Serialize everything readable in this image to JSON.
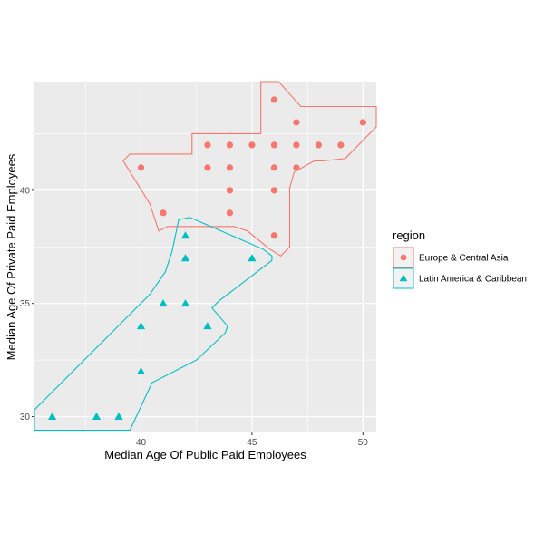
{
  "chart_data": {
    "type": "scatter",
    "xlabel": "Median Age Of Public Paid Employees",
    "ylabel": "Median Age Of Private Paid Employees",
    "xlim": [
      35.2,
      50.6
    ],
    "ylim": [
      29.3,
      44.8
    ],
    "x_ticks": [
      40,
      45,
      50
    ],
    "y_ticks": [
      30,
      35,
      40
    ],
    "grid": true,
    "legend": {
      "title": "region",
      "position": "right"
    },
    "series": [
      {
        "name": "Europe & Central Asia",
        "color": "#F8766D",
        "shape": "circle",
        "points": [
          [
            46,
            44
          ],
          [
            47,
            43
          ],
          [
            50,
            43
          ],
          [
            43,
            42
          ],
          [
            44,
            42
          ],
          [
            45,
            42
          ],
          [
            46,
            42
          ],
          [
            47,
            42
          ],
          [
            48,
            42
          ],
          [
            49,
            42
          ],
          [
            40,
            41
          ],
          [
            43,
            41
          ],
          [
            44,
            41
          ],
          [
            46,
            41
          ],
          [
            47,
            41
          ],
          [
            44,
            40
          ],
          [
            46,
            40
          ],
          [
            41,
            39
          ],
          [
            44,
            39
          ],
          [
            46,
            38
          ]
        ],
        "hull": [
          [
            45.4,
            44.8
          ],
          [
            46.2,
            44.8
          ],
          [
            47.2,
            43.7
          ],
          [
            50.6,
            43.7
          ],
          [
            50.6,
            42.8
          ],
          [
            49.2,
            41.4
          ],
          [
            48.2,
            41.3
          ],
          [
            47.8,
            41.3
          ],
          [
            46.9,
            40.8
          ],
          [
            46.7,
            40.1
          ],
          [
            46.7,
            37.5
          ],
          [
            46.3,
            37.1
          ],
          [
            45.8,
            37.4
          ],
          [
            44.8,
            38.2
          ],
          [
            44.2,
            38.4
          ],
          [
            41.2,
            38.4
          ],
          [
            40.8,
            38.2
          ],
          [
            40.4,
            39.4
          ],
          [
            39.2,
            41.3
          ],
          [
            39.5,
            41.6
          ],
          [
            42.3,
            41.6
          ],
          [
            42.3,
            42.5
          ],
          [
            45.4,
            42.5
          ]
        ]
      },
      {
        "name": "Latin America & Caribbean",
        "color": "#00BFC4",
        "shape": "triangle",
        "points": [
          [
            42,
            38
          ],
          [
            42,
            37
          ],
          [
            45,
            37
          ],
          [
            41,
            35
          ],
          [
            42,
            35
          ],
          [
            40,
            34
          ],
          [
            43,
            34
          ],
          [
            40,
            32
          ],
          [
            36,
            30
          ],
          [
            38,
            30
          ],
          [
            39,
            30
          ]
        ],
        "hull": [
          [
            35.2,
            29.4
          ],
          [
            39.5,
            29.4
          ],
          [
            40.5,
            31.5
          ],
          [
            42.5,
            32.5
          ],
          [
            43.8,
            33.7
          ],
          [
            43.9,
            34.0
          ],
          [
            43.2,
            34.8
          ],
          [
            43.5,
            35.1
          ],
          [
            45.9,
            36.9
          ],
          [
            45.9,
            37.1
          ],
          [
            45.5,
            37.4
          ],
          [
            42.2,
            38.8
          ],
          [
            41.7,
            38.7
          ],
          [
            41.4,
            37.3
          ],
          [
            41.1,
            36.4
          ],
          [
            40.4,
            35.4
          ],
          [
            35.2,
            30.3
          ]
        ]
      }
    ]
  }
}
